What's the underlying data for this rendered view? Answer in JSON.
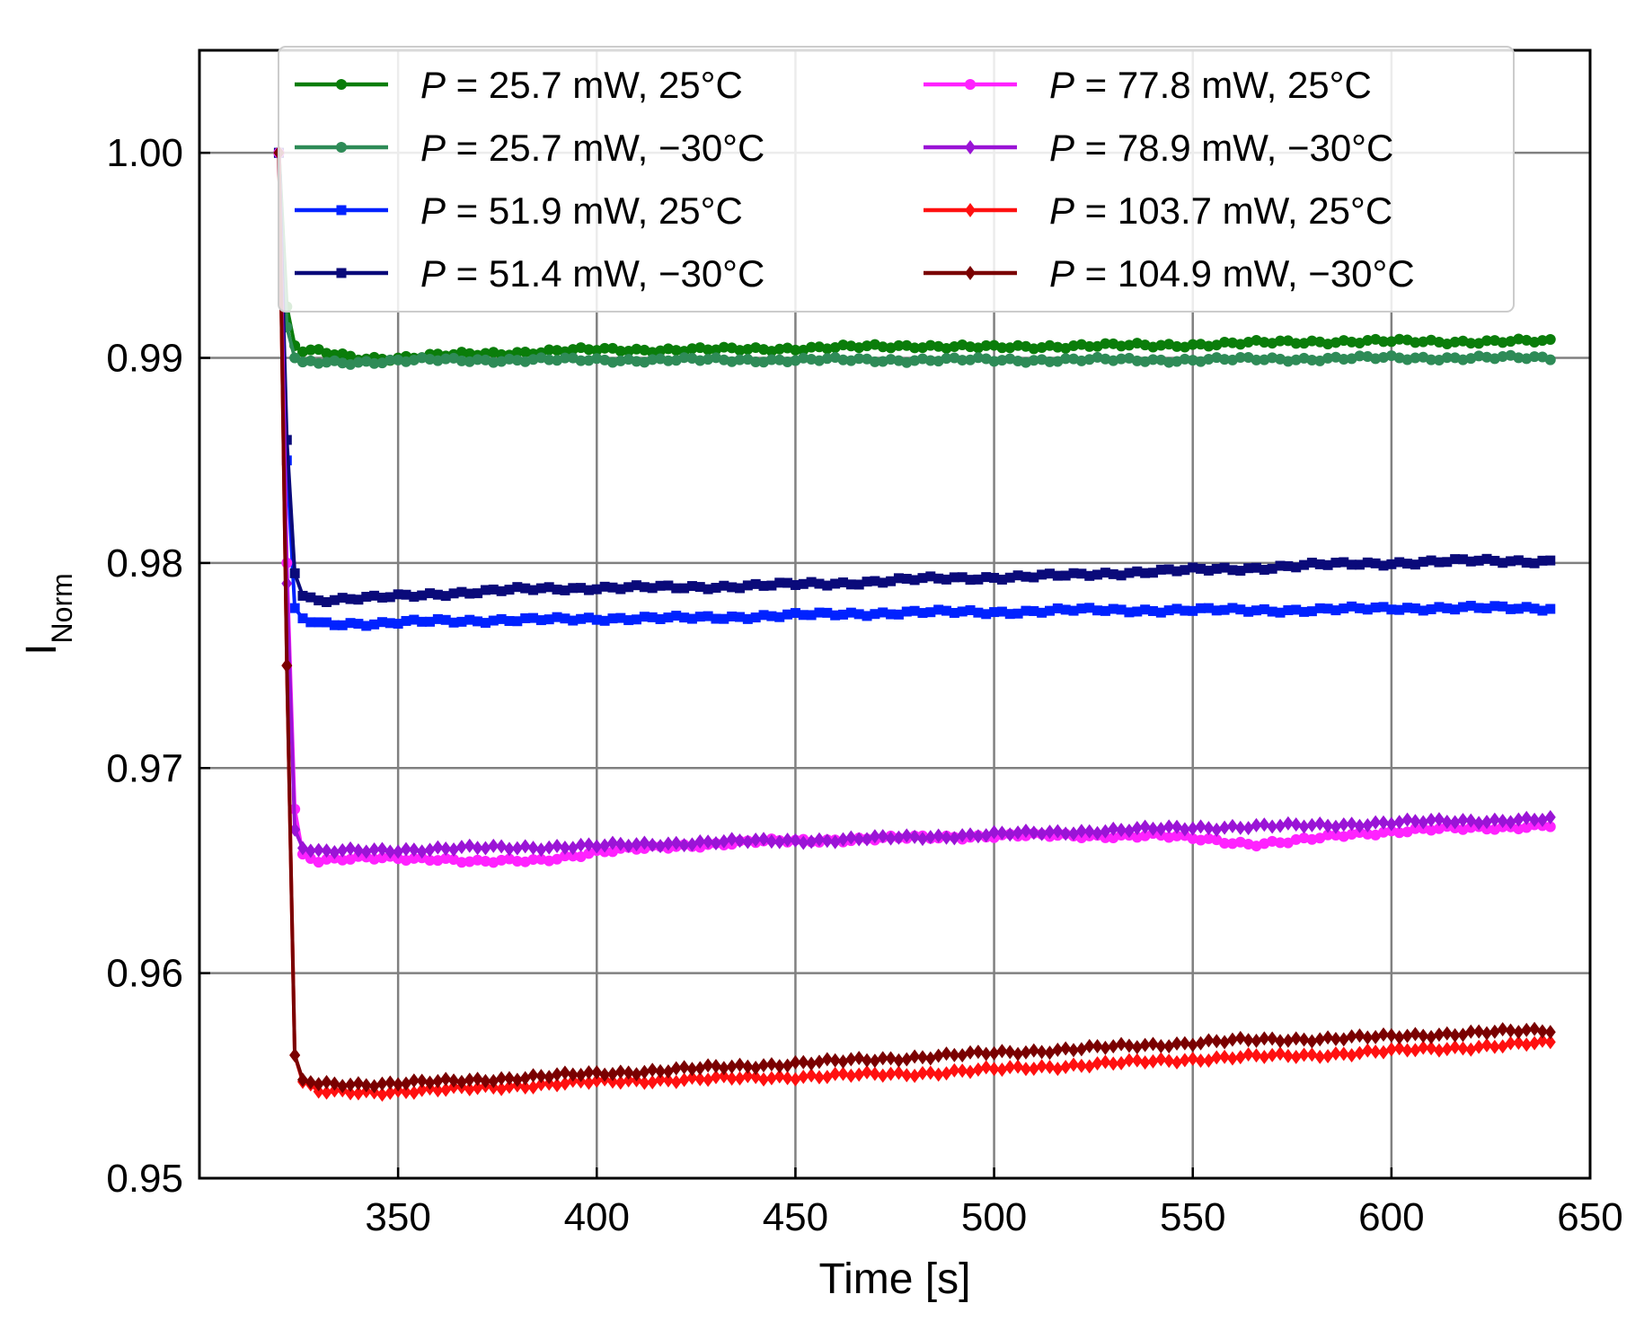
{
  "chart_data": {
    "type": "line",
    "title": "",
    "xlabel": "Time [s]",
    "ylabel": "I",
    "ylabel_sub": "Norm",
    "xlim": [
      300,
      650
    ],
    "ylim": [
      0.95,
      1.005
    ],
    "xticks": [
      350,
      400,
      450,
      500,
      550,
      600,
      650
    ],
    "yticks": [
      0.95,
      0.96,
      0.97,
      0.98,
      0.99,
      1.0
    ],
    "ytick_labels": [
      "0.95",
      "0.96",
      "0.97",
      "0.98",
      "0.99",
      "1.00"
    ],
    "grid": true,
    "legend_position": "top",
    "legend_columns": 2,
    "x_start": 320,
    "x_end": 640,
    "marker_step_s": 2,
    "series": [
      {
        "name": "P = 25.7 mW, 25°C",
        "prefix": "P",
        "rest": " = 25.7 mW, 25°C",
        "color": "#0a7d0a",
        "marker": "circle",
        "points": [
          [
            320,
            1.0
          ],
          [
            322,
            0.9925
          ],
          [
            324,
            0.9906
          ],
          [
            326,
            0.9903
          ],
          [
            330,
            0.9903
          ],
          [
            340,
            0.99
          ],
          [
            350,
            0.99
          ],
          [
            370,
            0.9902
          ],
          [
            400,
            0.9904
          ],
          [
            430,
            0.9904
          ],
          [
            460,
            0.9905
          ],
          [
            480,
            0.9906
          ],
          [
            500,
            0.9905
          ],
          [
            520,
            0.9906
          ],
          [
            540,
            0.9906
          ],
          [
            560,
            0.9907
          ],
          [
            580,
            0.9908
          ],
          [
            600,
            0.9908
          ],
          [
            620,
            0.9908
          ],
          [
            640,
            0.9908
          ]
        ]
      },
      {
        "name": "P = 25.7 mW, −30°C",
        "prefix": "P",
        "rest": " = 25.7 mW, −30°C",
        "color": "#2e8b57",
        "marker": "circle",
        "points": [
          [
            320,
            1.0
          ],
          [
            322,
            0.9915
          ],
          [
            324,
            0.99
          ],
          [
            326,
            0.9898
          ],
          [
            340,
            0.9898
          ],
          [
            360,
            0.9899
          ],
          [
            380,
            0.9899
          ],
          [
            400,
            0.9899
          ],
          [
            450,
            0.9899
          ],
          [
            500,
            0.9899
          ],
          [
            550,
            0.9899
          ],
          [
            600,
            0.99
          ],
          [
            640,
            0.99
          ]
        ]
      },
      {
        "name": "P = 51.9 mW, 25°C",
        "prefix": "P",
        "rest": " = 51.9 mW, 25°C",
        "color": "#0022ff",
        "marker": "square",
        "points": [
          [
            320,
            1.0
          ],
          [
            322,
            0.985
          ],
          [
            324,
            0.9778
          ],
          [
            326,
            0.9773
          ],
          [
            330,
            0.9771
          ],
          [
            345,
            0.977
          ],
          [
            360,
            0.9772
          ],
          [
            380,
            0.9772
          ],
          [
            400,
            0.9773
          ],
          [
            420,
            0.9773
          ],
          [
            440,
            0.9774
          ],
          [
            460,
            0.9775
          ],
          [
            480,
            0.9776
          ],
          [
            500,
            0.9776
          ],
          [
            520,
            0.9777
          ],
          [
            540,
            0.9777
          ],
          [
            560,
            0.9777
          ],
          [
            580,
            0.9777
          ],
          [
            600,
            0.9778
          ],
          [
            620,
            0.9778
          ],
          [
            640,
            0.9778
          ]
        ]
      },
      {
        "name": "P = 51.4 mW, −30°C",
        "prefix": "P",
        "rest": " = 51.4 mW, −30°C",
        "color": "#0a0a7a",
        "marker": "square",
        "points": [
          [
            320,
            1.0
          ],
          [
            322,
            0.986
          ],
          [
            324,
            0.9795
          ],
          [
            326,
            0.9784
          ],
          [
            330,
            0.9782
          ],
          [
            345,
            0.9783
          ],
          [
            360,
            0.9785
          ],
          [
            380,
            0.9787
          ],
          [
            400,
            0.9788
          ],
          [
            420,
            0.9788
          ],
          [
            440,
            0.9789
          ],
          [
            460,
            0.979
          ],
          [
            480,
            0.9792
          ],
          [
            500,
            0.9793
          ],
          [
            520,
            0.9794
          ],
          [
            540,
            0.9796
          ],
          [
            560,
            0.9797
          ],
          [
            580,
            0.9799
          ],
          [
            600,
            0.98
          ],
          [
            620,
            0.9801
          ],
          [
            640,
            0.9801
          ]
        ]
      },
      {
        "name": "P = 77.8 mW, 25°C",
        "prefix": "P",
        "rest": " = 77.8 mW, 25°C",
        "color": "#ff22ff",
        "marker": "circle",
        "points": [
          [
            320,
            1.0
          ],
          [
            322,
            0.98
          ],
          [
            324,
            0.968
          ],
          [
            326,
            0.9658
          ],
          [
            330,
            0.9655
          ],
          [
            345,
            0.9656
          ],
          [
            360,
            0.9656
          ],
          [
            370,
            0.9654
          ],
          [
            385,
            0.9655
          ],
          [
            400,
            0.9659
          ],
          [
            420,
            0.9662
          ],
          [
            440,
            0.9664
          ],
          [
            460,
            0.9665
          ],
          [
            480,
            0.9666
          ],
          [
            500,
            0.9667
          ],
          [
            520,
            0.9667
          ],
          [
            540,
            0.9667
          ],
          [
            555,
            0.9665
          ],
          [
            565,
            0.9663
          ],
          [
            575,
            0.9664
          ],
          [
            590,
            0.9668
          ],
          [
            610,
            0.967
          ],
          [
            625,
            0.9671
          ],
          [
            640,
            0.9672
          ]
        ]
      },
      {
        "name": "P = 78.9 mW, −30°C",
        "prefix": "P",
        "rest": " = 78.9 mW, −30°C",
        "color": "#9a14d6",
        "marker": "diamond",
        "points": [
          [
            320,
            1.0
          ],
          [
            322,
            0.979
          ],
          [
            324,
            0.967
          ],
          [
            326,
            0.9661
          ],
          [
            330,
            0.9659
          ],
          [
            345,
            0.966
          ],
          [
            370,
            0.9661
          ],
          [
            400,
            0.9662
          ],
          [
            430,
            0.9664
          ],
          [
            460,
            0.9665
          ],
          [
            490,
            0.9667
          ],
          [
            520,
            0.9669
          ],
          [
            550,
            0.9671
          ],
          [
            580,
            0.9672
          ],
          [
            610,
            0.9674
          ],
          [
            640,
            0.9675
          ]
        ]
      },
      {
        "name": "P = 103.7 mW, 25°C",
        "prefix": "P",
        "rest": " = 103.7 mW, 25°C",
        "color": "#ff1010",
        "marker": "diamond",
        "points": [
          [
            320,
            1.0
          ],
          [
            322,
            0.975
          ],
          [
            323,
            0.96
          ],
          [
            324,
            0.956
          ],
          [
            326,
            0.9547
          ],
          [
            330,
            0.9542
          ],
          [
            345,
            0.9542
          ],
          [
            360,
            0.9543
          ],
          [
            380,
            0.9545
          ],
          [
            400,
            0.9547
          ],
          [
            420,
            0.9548
          ],
          [
            440,
            0.9549
          ],
          [
            460,
            0.955
          ],
          [
            480,
            0.9551
          ],
          [
            500,
            0.9553
          ],
          [
            520,
            0.9555
          ],
          [
            540,
            0.9557
          ],
          [
            560,
            0.9559
          ],
          [
            580,
            0.956
          ],
          [
            600,
            0.9562
          ],
          [
            620,
            0.9564
          ],
          [
            640,
            0.9566
          ]
        ]
      },
      {
        "name": "P = 104.9 mW, −30°C",
        "prefix": "P",
        "rest": " = 104.9 mW, −30°C",
        "color": "#7a0000",
        "marker": "diamond",
        "points": [
          [
            320,
            1.0
          ],
          [
            322,
            0.975
          ],
          [
            323,
            0.96
          ],
          [
            324,
            0.956
          ],
          [
            326,
            0.9548
          ],
          [
            330,
            0.9546
          ],
          [
            345,
            0.9546
          ],
          [
            360,
            0.9547
          ],
          [
            380,
            0.9549
          ],
          [
            400,
            0.9551
          ],
          [
            420,
            0.9553
          ],
          [
            440,
            0.9555
          ],
          [
            460,
            0.9557
          ],
          [
            480,
            0.9559
          ],
          [
            500,
            0.9561
          ],
          [
            520,
            0.9563
          ],
          [
            540,
            0.9565
          ],
          [
            560,
            0.9567
          ],
          [
            580,
            0.9568
          ],
          [
            600,
            0.9569
          ],
          [
            620,
            0.9571
          ],
          [
            640,
            0.9572
          ]
        ]
      }
    ]
  }
}
